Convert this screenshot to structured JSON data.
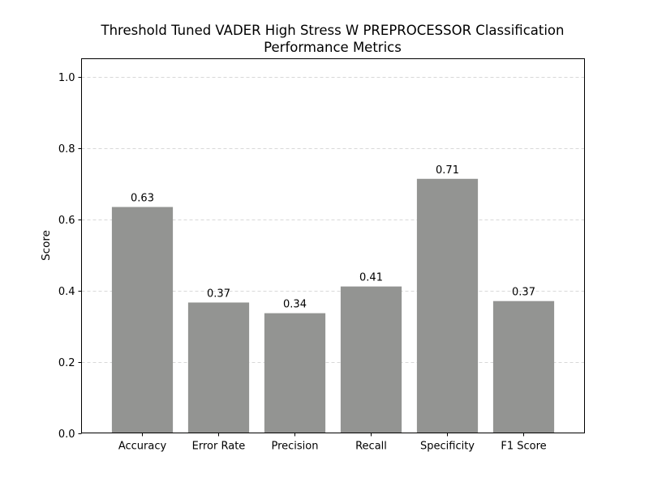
{
  "chart_data": {
    "type": "bar",
    "title_lines": [
      "Threshold Tuned VADER High Stress W PREPROCESSOR Classification",
      "Performance Metrics"
    ],
    "xlabel": "",
    "ylabel": "Score",
    "categories": [
      "Accuracy",
      "Error Rate",
      "Precision",
      "Recall",
      "Specificity",
      "F1 Score"
    ],
    "values": [
      0.634,
      0.366,
      0.336,
      0.411,
      0.713,
      0.37
    ],
    "value_labels": [
      "0.63",
      "0.37",
      "0.34",
      "0.41",
      "0.71",
      "0.37"
    ],
    "ylim": [
      0,
      1.05
    ],
    "yticks": [
      0.0,
      0.2,
      0.4,
      0.6,
      0.8,
      1.0
    ],
    "ytick_labels": [
      "0.0",
      "0.2",
      "0.4",
      "0.6",
      "0.8",
      "1.0"
    ],
    "grid": "y-dashed",
    "legend": "none",
    "bar_color": "#939492",
    "grid_color": "#cccccc"
  }
}
